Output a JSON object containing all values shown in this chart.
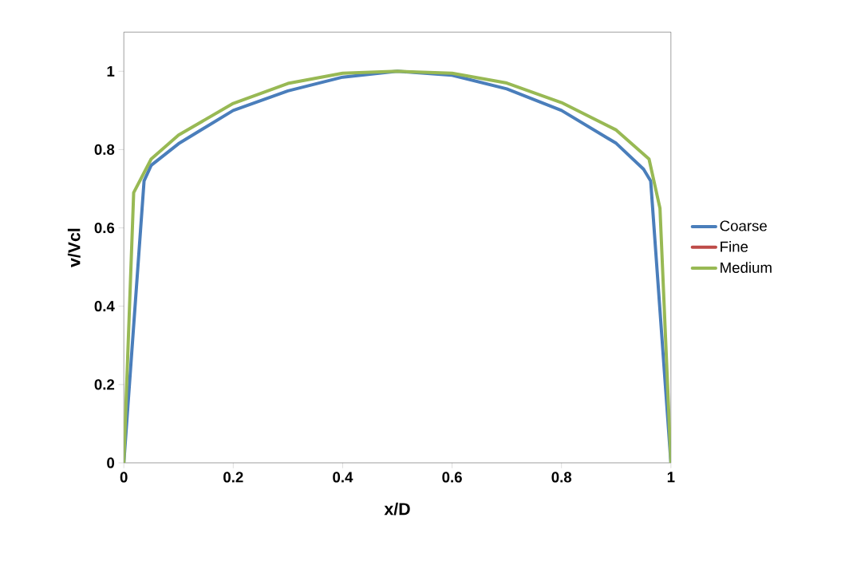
{
  "chart_data": {
    "type": "line",
    "xlabel": "x/D",
    "ylabel": "v/Vcl",
    "xlim": [
      0,
      1
    ],
    "ylim": [
      0,
      1.1
    ],
    "xticks": [
      0,
      0.2,
      0.4,
      0.6,
      0.8,
      1
    ],
    "yticks": [
      0,
      0.2,
      0.4,
      0.6,
      0.8,
      1
    ],
    "grid": false,
    "legend": "right",
    "marker": "none",
    "line_style": "solid",
    "series": [
      {
        "name": "Coarse",
        "color": "#4a7ebb",
        "x": [
          0,
          0.037,
          0.05,
          0.1,
          0.2,
          0.3,
          0.4,
          0.5,
          0.6,
          0.7,
          0.8,
          0.9,
          0.95,
          0.963,
          1
        ],
        "values": [
          0,
          0.72,
          0.76,
          0.815,
          0.9,
          0.95,
          0.985,
          1.0,
          0.99,
          0.955,
          0.9,
          0.816,
          0.75,
          0.72,
          0
        ]
      },
      {
        "name": "Fine",
        "color": "#be4b48"
      },
      {
        "name": "Medium",
        "color": "#98b954",
        "x": [
          0,
          0.018,
          0.05,
          0.1,
          0.2,
          0.3,
          0.4,
          0.5,
          0.6,
          0.7,
          0.8,
          0.9,
          0.96,
          0.98,
          1
        ],
        "values": [
          0,
          0.69,
          0.776,
          0.837,
          0.918,
          0.969,
          0.995,
          1.0,
          0.995,
          0.97,
          0.92,
          0.85,
          0.776,
          0.65,
          0
        ]
      }
    ]
  }
}
